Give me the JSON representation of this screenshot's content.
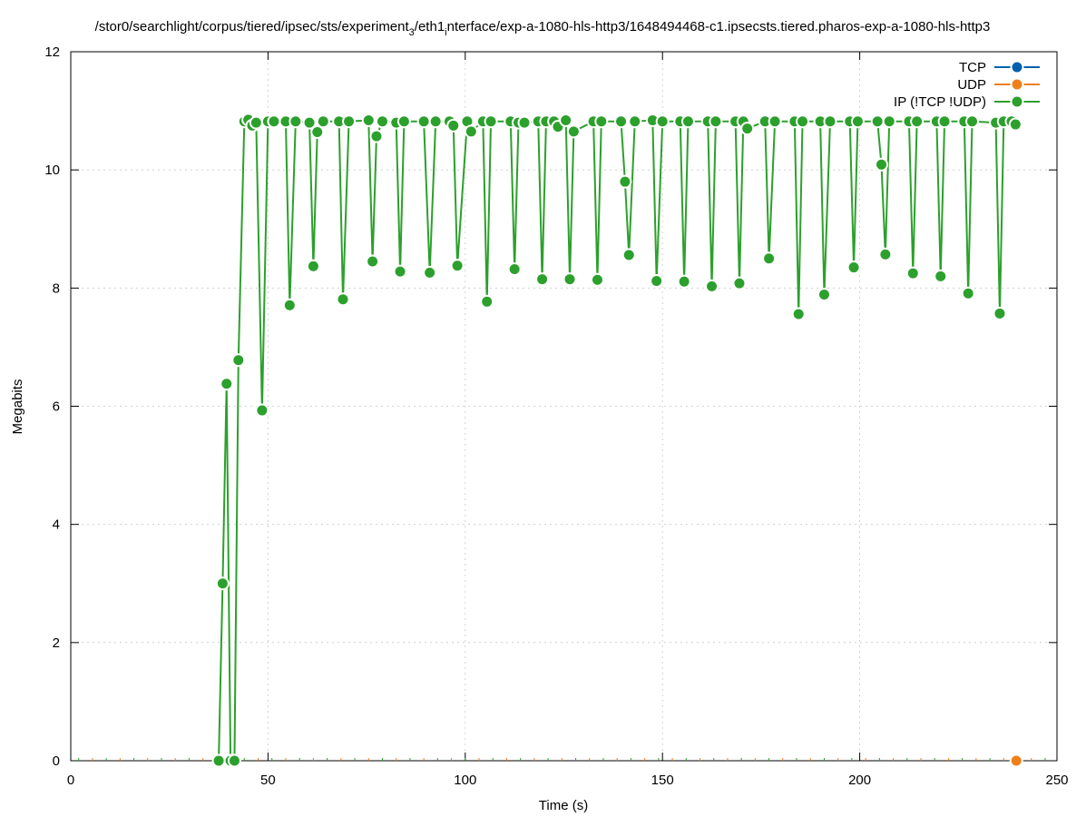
{
  "chart_data": {
    "type": "line",
    "title": "/stor0/searchlight/corpus/tiered/ipsec/sts/experiment",
    "title_sub3": "3",
    "title_mid": "/eth1",
    "title_subi": "i",
    "title_end": "nterface/exp-a-1080-hls-http3/1648494468-c1.ipsecsts.tiered.pharos-exp-a-1080-hls-http3",
    "xlabel": "Time (s)",
    "ylabel": "Megabits",
    "xlim": [
      0,
      250
    ],
    "ylim": [
      0,
      12
    ],
    "x_ticks": [
      0,
      50,
      100,
      150,
      200,
      250
    ],
    "y_ticks": [
      0,
      2,
      4,
      6,
      8,
      10,
      12
    ],
    "grid": true,
    "legend_position": "top-right",
    "series": [
      {
        "name": "TCP",
        "color": "#0060ad",
        "x": [],
        "y": []
      },
      {
        "name": "UDP",
        "color": "#ef7f1a",
        "x": [
          239.7
        ],
        "y": [
          0
        ]
      },
      {
        "name": "IP (!TCP  !UDP)",
        "color": "#2ca02c",
        "x": [
          37.5,
          38.5,
          39.5,
          40.5,
          41.5,
          42.5,
          44.0,
          45.0,
          46.0,
          47.0,
          48.5,
          50.0,
          51.5,
          54.5,
          55.5,
          57.0,
          60.5,
          61.5,
          62.5,
          64.0,
          68.0,
          69.0,
          70.5,
          75.5,
          76.5,
          77.5,
          79.0,
          82.5,
          83.5,
          84.5,
          89.5,
          91.0,
          92.5,
          96.0,
          97.0,
          98.0,
          100.5,
          101.5,
          104.5,
          105.5,
          106.5,
          111.5,
          112.5,
          113.5,
          115.0,
          118.5,
          119.5,
          120.5,
          122.5,
          123.5,
          125.5,
          126.5,
          127.5,
          132.5,
          133.5,
          134.5,
          139.5,
          140.5,
          141.5,
          143.0,
          147.5,
          148.5,
          150.0,
          154.5,
          155.5,
          156.5,
          161.5,
          162.5,
          163.5,
          168.5,
          169.5,
          170.5,
          171.5,
          176.0,
          177.0,
          178.5,
          183.5,
          184.5,
          185.5,
          190.0,
          191.0,
          192.5,
          197.5,
          198.5,
          199.5,
          204.5,
          205.5,
          206.5,
          207.5,
          212.5,
          213.5,
          214.5,
          219.5,
          220.5,
          221.5,
          226.5,
          227.5,
          228.5,
          234.5,
          235.5,
          236.5,
          238.5,
          239.5
        ],
        "y": [
          0,
          3.0,
          6.38,
          0,
          0,
          6.78,
          10.82,
          10.85,
          10.75,
          10.8,
          5.93,
          10.82,
          10.82,
          10.82,
          7.71,
          10.82,
          10.8,
          8.37,
          10.64,
          10.82,
          10.82,
          7.81,
          10.82,
          10.84,
          8.45,
          10.57,
          10.82,
          10.8,
          8.28,
          10.82,
          10.82,
          8.26,
          10.82,
          10.82,
          10.75,
          8.38,
          10.82,
          10.65,
          10.82,
          7.77,
          10.82,
          10.82,
          8.32,
          10.8,
          10.8,
          10.82,
          8.15,
          10.82,
          10.82,
          10.73,
          10.84,
          8.15,
          10.65,
          10.82,
          8.14,
          10.82,
          10.82,
          9.8,
          8.56,
          10.82,
          10.84,
          8.12,
          10.82,
          10.82,
          8.11,
          10.82,
          10.82,
          8.03,
          10.82,
          10.82,
          8.08,
          10.82,
          10.7,
          10.82,
          8.5,
          10.82,
          10.82,
          7.56,
          10.82,
          10.82,
          7.89,
          10.82,
          10.82,
          8.35,
          10.82,
          10.82,
          10.09,
          8.57,
          10.82,
          10.82,
          8.25,
          10.82,
          10.82,
          8.2,
          10.82,
          10.82,
          7.91,
          10.82,
          10.8,
          7.57,
          10.82,
          10.82,
          10.77
        ]
      }
    ]
  }
}
